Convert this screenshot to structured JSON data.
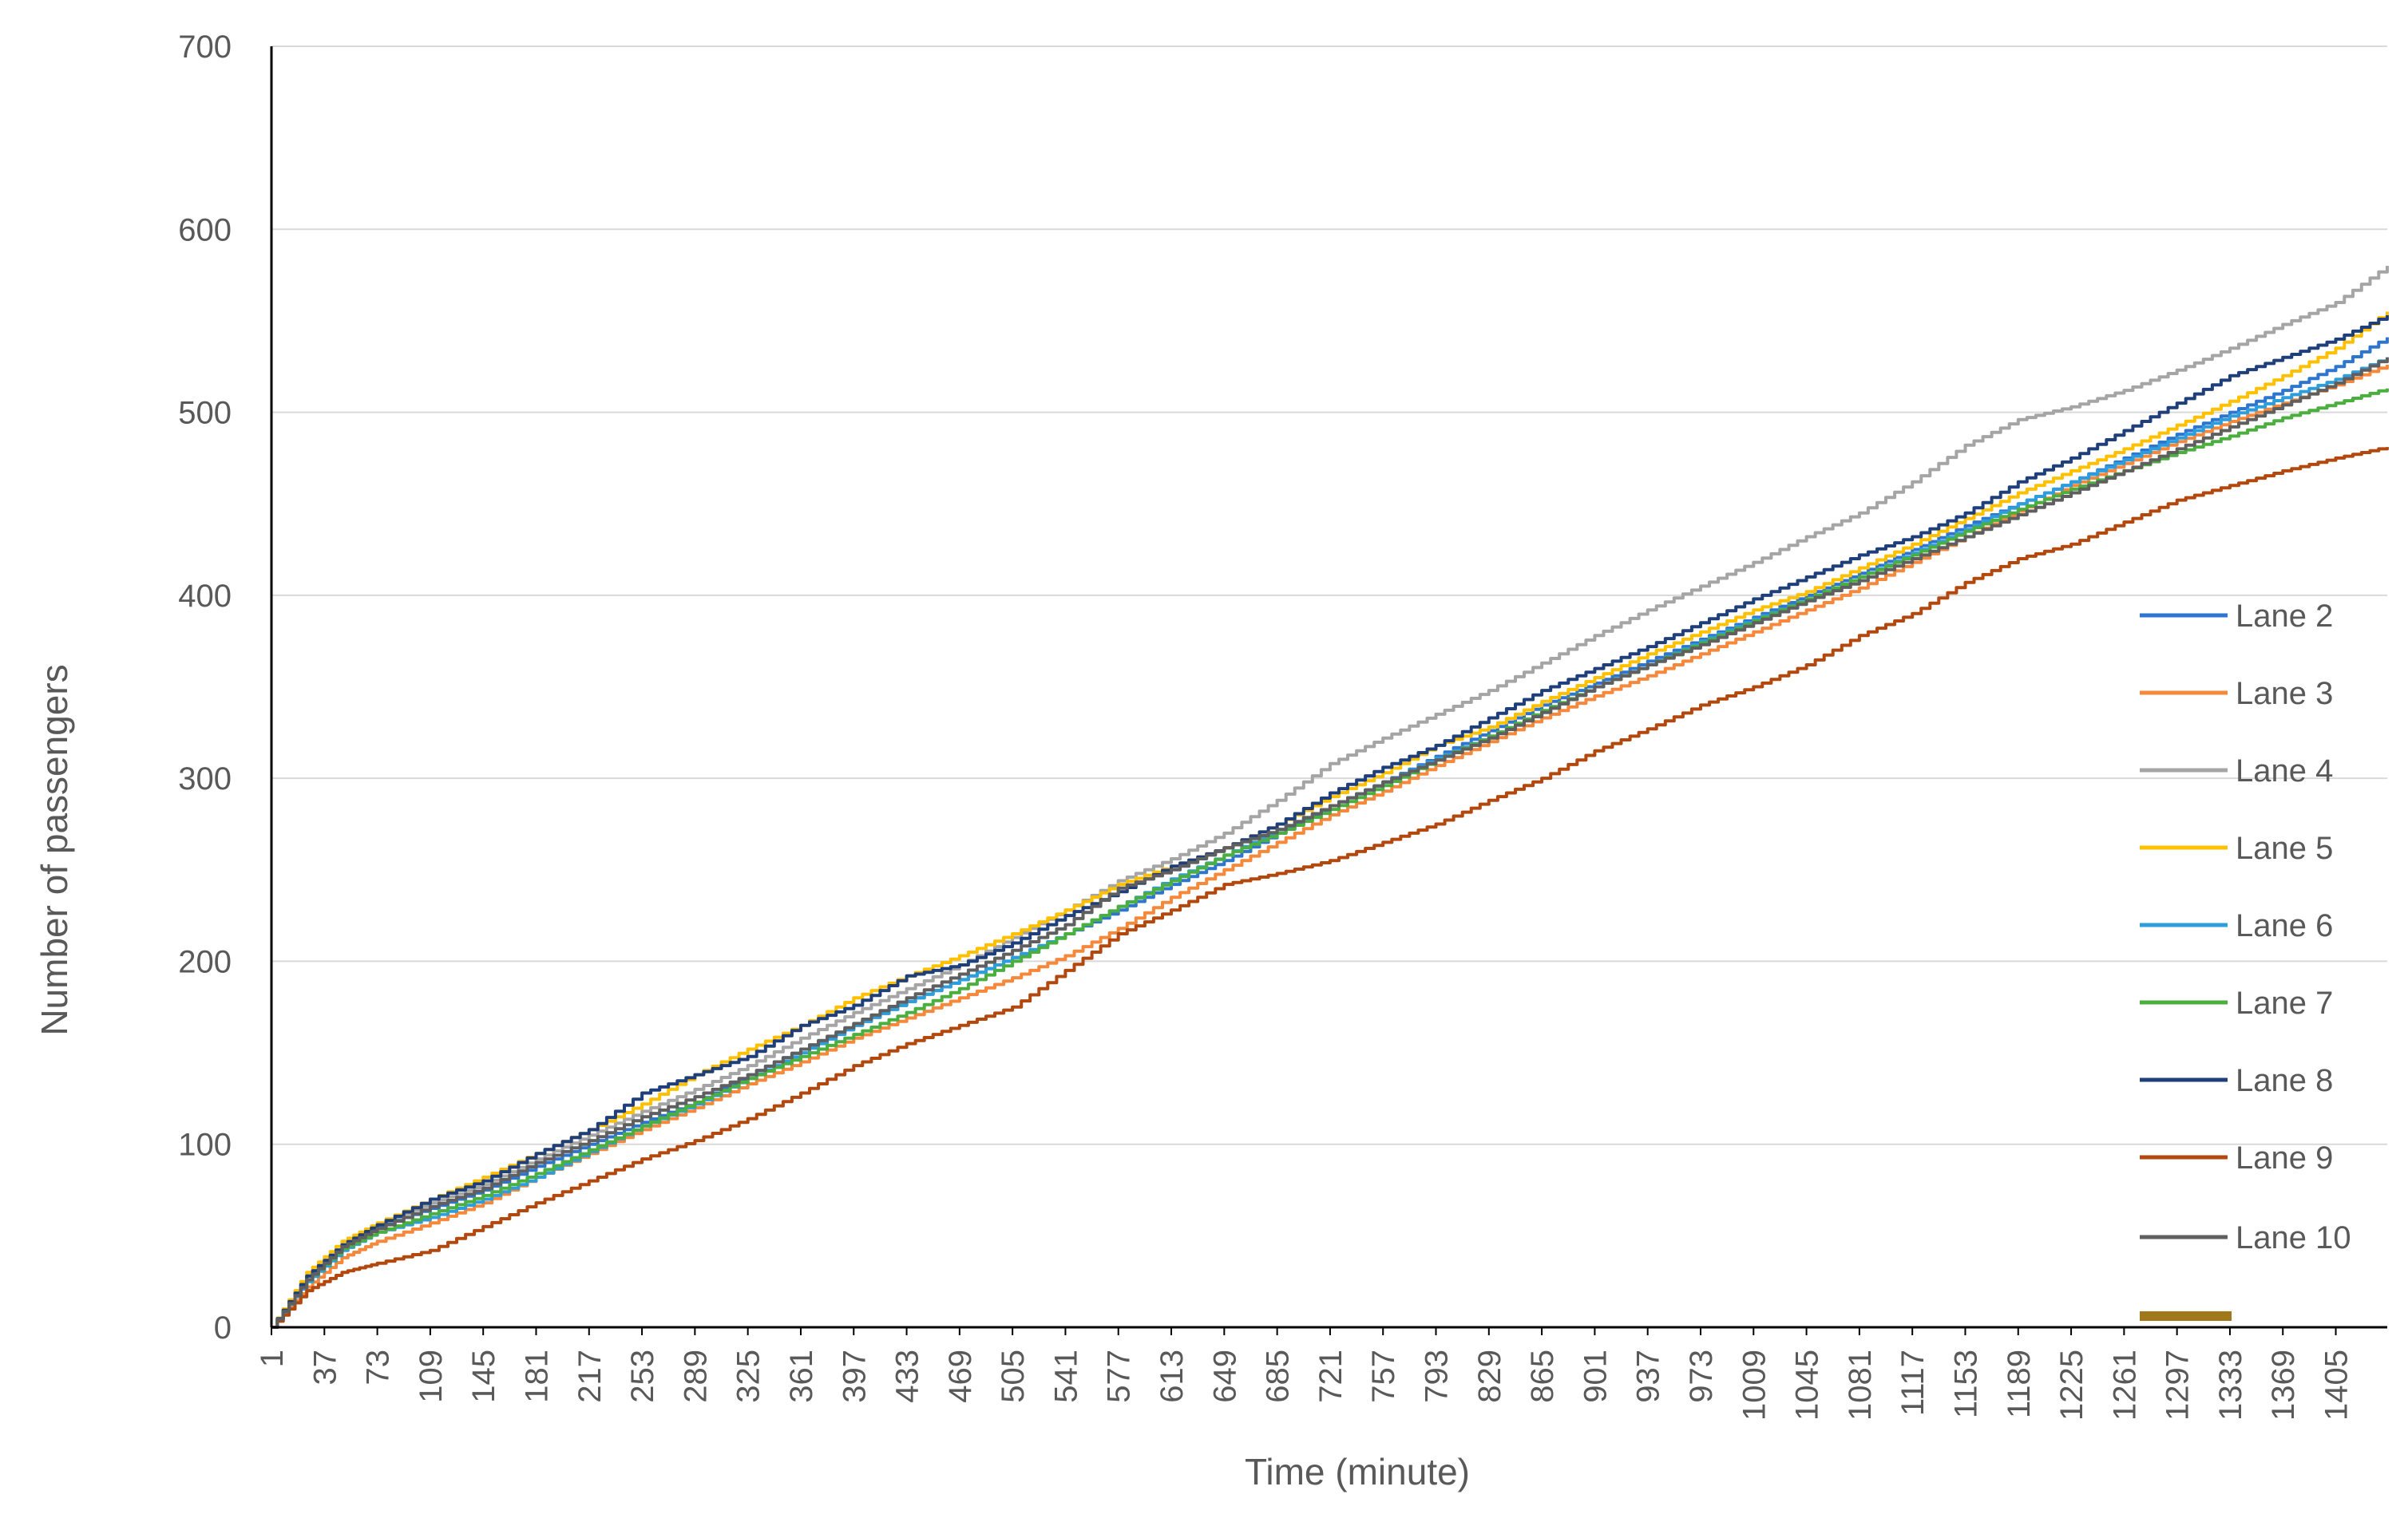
{
  "chart_data": {
    "type": "line",
    "title": "",
    "xlabel": "Time (minute)",
    "ylabel": "Number of passengers",
    "xlim": [
      1,
      1440
    ],
    "ylim": [
      0,
      700
    ],
    "y_ticks": [
      0,
      100,
      200,
      300,
      400,
      500,
      600,
      700
    ],
    "x_ticks": [
      1,
      37,
      73,
      109,
      145,
      181,
      217,
      253,
      289,
      325,
      361,
      397,
      433,
      469,
      505,
      541,
      577,
      613,
      649,
      685,
      721,
      757,
      793,
      829,
      865,
      901,
      937,
      973,
      1009,
      1045,
      1081,
      1117,
      1153,
      1189,
      1225,
      1261,
      1297,
      1333,
      1369,
      1405
    ],
    "grid": "horizontal",
    "legend_position": "right",
    "x": [
      1,
      25,
      49,
      73,
      109,
      145,
      181,
      217,
      253,
      289,
      325,
      361,
      397,
      433,
      469,
      505,
      541,
      577,
      613,
      649,
      685,
      721,
      757,
      793,
      829,
      865,
      901,
      937,
      973,
      1009,
      1045,
      1081,
      1117,
      1153,
      1189,
      1225,
      1261,
      1297,
      1333,
      1369,
      1405,
      1440
    ],
    "series": [
      {
        "name": "Lane 2",
        "color": "#2E75D0",
        "values": [
          0,
          28,
          45,
          55,
          65,
          75,
          88,
          100,
          112,
          123,
          138,
          152,
          165,
          178,
          190,
          202,
          215,
          228,
          242,
          255,
          270,
          285,
          298,
          312,
          326,
          340,
          352,
          364,
          376,
          388,
          400,
          412,
          425,
          438,
          450,
          462,
          475,
          488,
          500,
          512,
          525,
          541
        ]
      },
      {
        "name": "Lane 3",
        "color": "#F5883A",
        "values": [
          0,
          22,
          38,
          47,
          57,
          68,
          82,
          95,
          108,
          120,
          133,
          145,
          158,
          169,
          180,
          191,
          203,
          218,
          235,
          250,
          265,
          280,
          293,
          307,
          320,
          333,
          345,
          356,
          368,
          380,
          392,
          404,
          418,
          432,
          446,
          460,
          472,
          484,
          495,
          505,
          515,
          526
        ]
      },
      {
        "name": "Lane 4",
        "color": "#A5A5A5",
        "values": [
          0,
          28,
          45,
          56,
          68,
          78,
          92,
          105,
          118,
          130,
          143,
          158,
          172,
          185,
          198,
          213,
          228,
          244,
          256,
          270,
          288,
          308,
          322,
          335,
          348,
          363,
          378,
          392,
          405,
          418,
          432,
          445,
          462,
          482,
          496,
          503,
          512,
          523,
          535,
          548,
          560,
          580
        ]
      },
      {
        "name": "Lane 5",
        "color": "#FFC000",
        "values": [
          0,
          30,
          47,
          57,
          70,
          82,
          95,
          108,
          122,
          138,
          152,
          165,
          180,
          192,
          203,
          215,
          228,
          242,
          252,
          262,
          275,
          290,
          303,
          318,
          328,
          342,
          355,
          368,
          380,
          392,
          402,
          415,
          428,
          442,
          456,
          468,
          480,
          493,
          506,
          520,
          535,
          555
        ]
      },
      {
        "name": "Lane 6",
        "color": "#2E9DDB",
        "values": [
          0,
          25,
          42,
          52,
          60,
          70,
          82,
          96,
          110,
          122,
          136,
          150,
          165,
          178,
          190,
          202,
          215,
          230,
          245,
          258,
          272,
          285,
          298,
          311,
          323,
          336,
          350,
          362,
          375,
          387,
          398,
          410,
          423,
          436,
          450,
          462,
          474,
          486,
          498,
          508,
          518,
          530
        ]
      },
      {
        "name": "Lane 7",
        "color": "#4BAF3F",
        "values": [
          0,
          26,
          43,
          52,
          62,
          72,
          84,
          97,
          110,
          123,
          136,
          148,
          160,
          172,
          185,
          200,
          215,
          230,
          244,
          258,
          270,
          283,
          296,
          310,
          323,
          337,
          350,
          362,
          374,
          386,
          398,
          410,
          422,
          435,
          447,
          458,
          468,
          478,
          487,
          497,
          505,
          513
        ]
      },
      {
        "name": "Lane 8",
        "color": "#1F3F7A",
        "values": [
          0,
          28,
          45,
          56,
          70,
          80,
          95,
          108,
          128,
          138,
          148,
          165,
          176,
          192,
          198,
          210,
          225,
          238,
          252,
          262,
          275,
          292,
          306,
          318,
          333,
          348,
          360,
          372,
          385,
          398,
          410,
          422,
          432,
          445,
          462,
          475,
          490,
          505,
          520,
          530,
          540,
          553
        ]
      },
      {
        "name": "Lane 9",
        "color": "#B2480D",
        "values": [
          0,
          20,
          30,
          35,
          42,
          55,
          68,
          80,
          92,
          102,
          114,
          128,
          143,
          155,
          165,
          175,
          195,
          215,
          228,
          242,
          248,
          255,
          265,
          275,
          288,
          300,
          315,
          327,
          340,
          350,
          362,
          378,
          390,
          407,
          420,
          428,
          440,
          452,
          460,
          468,
          475,
          481
        ]
      },
      {
        "name": "Lane 10",
        "color": "#5F5F5F",
        "values": [
          0,
          26,
          44,
          54,
          66,
          76,
          90,
          102,
          115,
          126,
          138,
          152,
          166,
          180,
          193,
          206,
          220,
          240,
          250,
          262,
          272,
          285,
          298,
          310,
          322,
          336,
          350,
          362,
          373,
          385,
          397,
          408,
          420,
          432,
          444,
          456,
          468,
          480,
          492,
          504,
          516,
          530
        ]
      }
    ],
    "extra_legend_swatch_color": "#A0781A"
  }
}
